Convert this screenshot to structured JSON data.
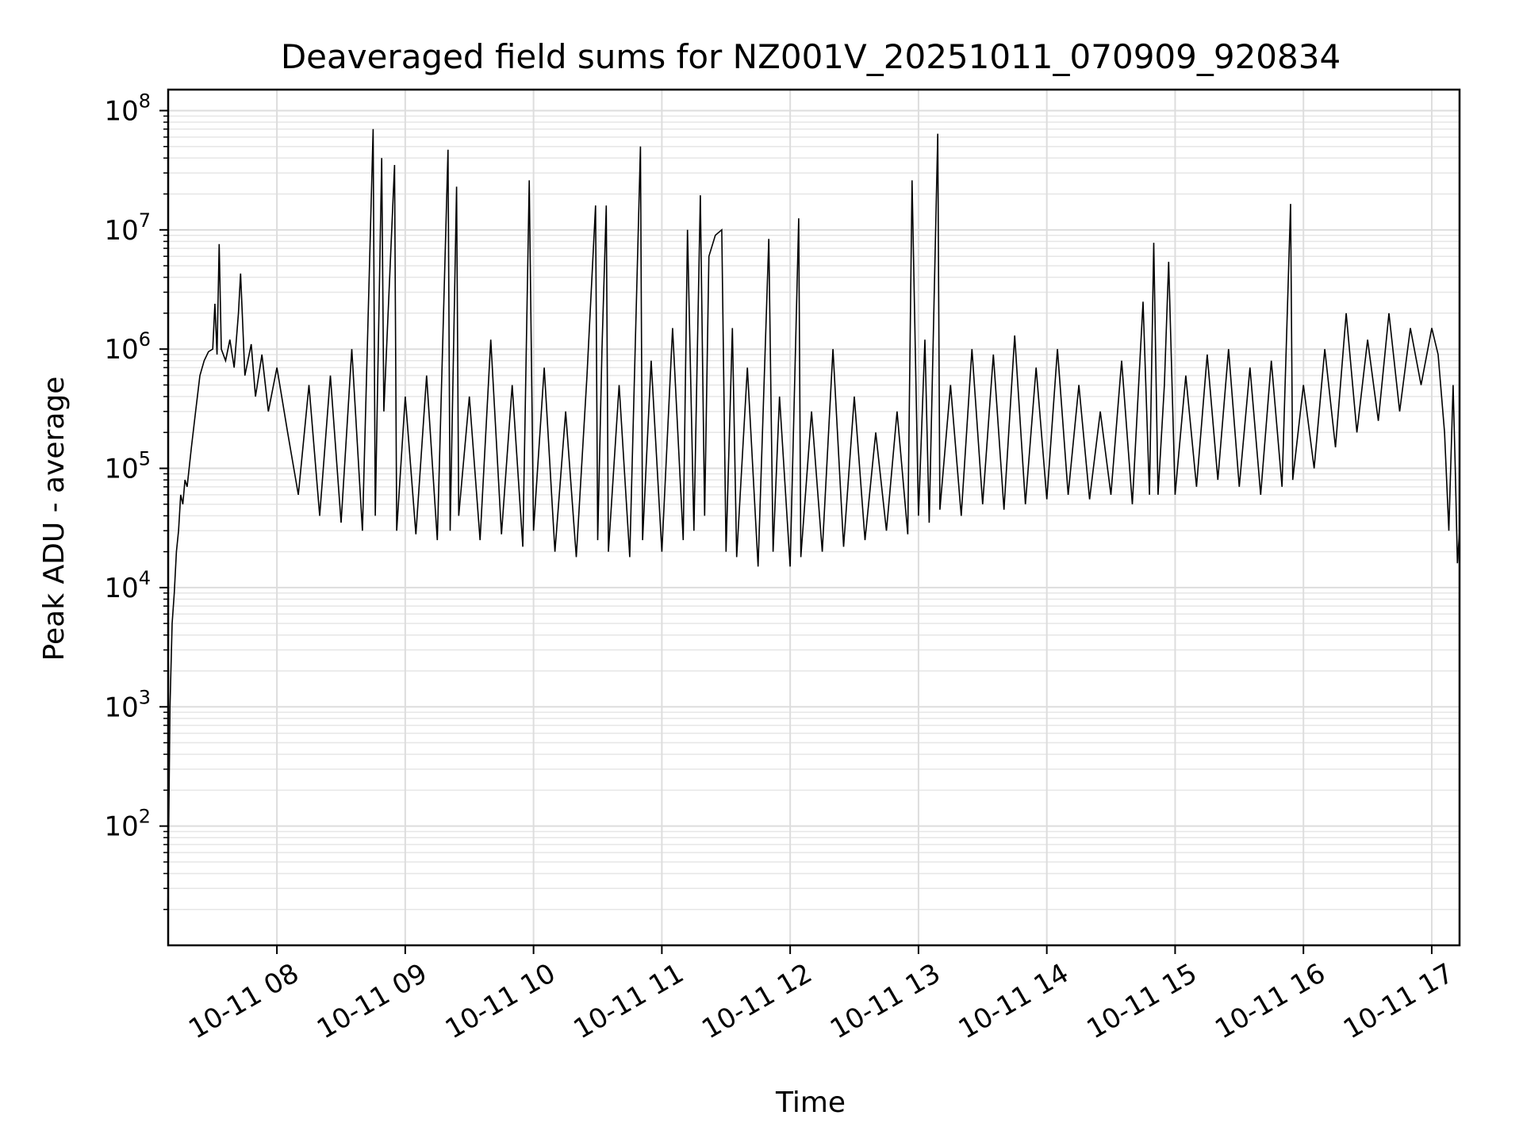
{
  "chart_data": {
    "type": "line",
    "title": "Deaveraged field sums for NZ001V_20251011_070909_920834",
    "xlabel": "Time",
    "ylabel": "Peak ADU - average",
    "yscale": "log",
    "ylim": [
      10,
      150000000
    ],
    "xlim": [
      "2025-10-11 07:09:09",
      "2025-10-11 17:13:00"
    ],
    "grid": true,
    "line_color": "#000000",
    "x_ticks": [
      {
        "t": "2025-10-11 08:00",
        "label": "10-11 08"
      },
      {
        "t": "2025-10-11 09:00",
        "label": "10-11 09"
      },
      {
        "t": "2025-10-11 10:00",
        "label": "10-11 10"
      },
      {
        "t": "2025-10-11 11:00",
        "label": "10-11 11"
      },
      {
        "t": "2025-10-11 12:00",
        "label": "10-11 12"
      },
      {
        "t": "2025-10-11 13:00",
        "label": "10-11 13"
      },
      {
        "t": "2025-10-11 14:00",
        "label": "10-11 14"
      },
      {
        "t": "2025-10-11 15:00",
        "label": "10-11 15"
      },
      {
        "t": "2025-10-11 16:00",
        "label": "10-11 16"
      },
      {
        "t": "2025-10-11 17:00",
        "label": "10-11 17"
      }
    ],
    "y_ticks": [
      {
        "value": 100,
        "base": "10",
        "exp": "2"
      },
      {
        "value": 1000,
        "base": "10",
        "exp": "3"
      },
      {
        "value": 10000,
        "base": "10",
        "exp": "4"
      },
      {
        "value": 100000,
        "base": "10",
        "exp": "5"
      },
      {
        "value": 1000000,
        "base": "10",
        "exp": "6"
      },
      {
        "value": 10000000,
        "base": "10",
        "exp": "7"
      },
      {
        "value": 100000000,
        "base": "10",
        "exp": "8"
      }
    ],
    "series": [
      {
        "points": [
          [
            "07:09",
            20
          ],
          [
            "07:10",
            1000
          ],
          [
            "07:11",
            5000
          ],
          [
            "07:12",
            9000
          ],
          [
            "07:13",
            20000
          ],
          [
            "07:14",
            30000
          ],
          [
            "07:15",
            60000
          ],
          [
            "07:16",
            50000
          ],
          [
            "07:17",
            80000
          ],
          [
            "07:18",
            70000
          ],
          [
            "07:20",
            150000
          ],
          [
            "07:22",
            300000
          ],
          [
            "07:24",
            600000
          ],
          [
            "07:26",
            800000
          ],
          [
            "07:28",
            950000
          ],
          [
            "07:30",
            1000000
          ],
          [
            "07:31",
            2400000
          ],
          [
            "07:32",
            900000
          ],
          [
            "07:33",
            7600000
          ],
          [
            "07:34",
            1000000
          ],
          [
            "07:36",
            800000
          ],
          [
            "07:38",
            1200000
          ],
          [
            "07:40",
            700000
          ],
          [
            "07:42",
            2000000
          ],
          [
            "07:43",
            4300000
          ],
          [
            "07:45",
            600000
          ],
          [
            "07:48",
            1100000
          ],
          [
            "07:50",
            400000
          ],
          [
            "07:53",
            900000
          ],
          [
            "07:56",
            300000
          ],
          [
            "08:00",
            700000
          ],
          [
            "08:05",
            200000
          ],
          [
            "08:10",
            60000
          ],
          [
            "08:15",
            500000
          ],
          [
            "08:20",
            40000
          ],
          [
            "08:25",
            600000
          ],
          [
            "08:30",
            35000
          ],
          [
            "08:35",
            1000000
          ],
          [
            "08:40",
            30000
          ],
          [
            "08:45",
            70000000
          ],
          [
            "08:46",
            40000
          ],
          [
            "08:49",
            40000000
          ],
          [
            "08:50",
            300000
          ],
          [
            "08:55",
            35000000
          ],
          [
            "08:56",
            30000
          ],
          [
            "09:00",
            400000
          ],
          [
            "09:05",
            28000
          ],
          [
            "09:10",
            600000
          ],
          [
            "09:15",
            25000
          ],
          [
            "09:20",
            47000000
          ],
          [
            "09:21",
            30000
          ],
          [
            "09:24",
            23000000
          ],
          [
            "09:25",
            40000
          ],
          [
            "09:30",
            400000
          ],
          [
            "09:35",
            25000
          ],
          [
            "09:40",
            1200000
          ],
          [
            "09:45",
            28000
          ],
          [
            "09:50",
            500000
          ],
          [
            "09:55",
            22000
          ],
          [
            "09:58",
            26000000
          ],
          [
            "10:00",
            30000
          ],
          [
            "10:05",
            700000
          ],
          [
            "10:10",
            20000
          ],
          [
            "10:15",
            300000
          ],
          [
            "10:20",
            18000
          ],
          [
            "10:25",
            600000
          ],
          [
            "10:29",
            16000000
          ],
          [
            "10:30",
            25000
          ],
          [
            "10:32",
            1000000
          ],
          [
            "10:34",
            16000000
          ],
          [
            "10:35",
            20000
          ],
          [
            "10:40",
            500000
          ],
          [
            "10:45",
            18000
          ],
          [
            "10:50",
            50000000
          ],
          [
            "10:51",
            25000
          ],
          [
            "10:55",
            800000
          ],
          [
            "11:00",
            20000
          ],
          [
            "11:05",
            1500000
          ],
          [
            "11:10",
            25000
          ],
          [
            "11:12",
            10000000
          ],
          [
            "11:15",
            30000
          ],
          [
            "11:18",
            19500000
          ],
          [
            "11:20",
            40000
          ],
          [
            "11:22",
            6000000
          ],
          [
            "11:25",
            9000000
          ],
          [
            "11:28",
            10000000
          ],
          [
            "11:30",
            20000
          ],
          [
            "11:33",
            1500000
          ],
          [
            "11:35",
            18000
          ],
          [
            "11:40",
            700000
          ],
          [
            "11:45",
            15000
          ],
          [
            "11:50",
            8400000
          ],
          [
            "11:52",
            20000
          ],
          [
            "11:55",
            400000
          ],
          [
            "12:00",
            15000
          ],
          [
            "12:04",
            12500000
          ],
          [
            "12:05",
            18000
          ],
          [
            "12:10",
            300000
          ],
          [
            "12:15",
            20000
          ],
          [
            "12:20",
            1000000
          ],
          [
            "12:25",
            22000
          ],
          [
            "12:30",
            400000
          ],
          [
            "12:35",
            25000
          ],
          [
            "12:40",
            200000
          ],
          [
            "12:45",
            30000
          ],
          [
            "12:50",
            300000
          ],
          [
            "12:55",
            28000
          ],
          [
            "12:57",
            26000000
          ],
          [
            "13:00",
            40000
          ],
          [
            "13:03",
            1200000
          ],
          [
            "13:05",
            35000
          ],
          [
            "13:09",
            64000000
          ],
          [
            "13:10",
            45000
          ],
          [
            "13:15",
            500000
          ],
          [
            "13:20",
            40000
          ],
          [
            "13:25",
            1000000
          ],
          [
            "13:30",
            50000
          ],
          [
            "13:35",
            900000
          ],
          [
            "13:40",
            45000
          ],
          [
            "13:45",
            1300000
          ],
          [
            "13:50",
            50000
          ],
          [
            "13:55",
            700000
          ],
          [
            "14:00",
            55000
          ],
          [
            "14:05",
            1000000
          ],
          [
            "14:10",
            60000
          ],
          [
            "14:15",
            500000
          ],
          [
            "14:20",
            55000
          ],
          [
            "14:25",
            300000
          ],
          [
            "14:30",
            60000
          ],
          [
            "14:35",
            800000
          ],
          [
            "14:40",
            50000
          ],
          [
            "14:45",
            2500000
          ],
          [
            "14:48",
            60000
          ],
          [
            "14:50",
            7800000
          ],
          [
            "14:52",
            60000
          ],
          [
            "14:55",
            500000
          ],
          [
            "14:57",
            5400000
          ],
          [
            "15:00",
            60000
          ],
          [
            "15:05",
            600000
          ],
          [
            "15:10",
            70000
          ],
          [
            "15:15",
            900000
          ],
          [
            "15:20",
            80000
          ],
          [
            "15:25",
            1000000
          ],
          [
            "15:30",
            70000
          ],
          [
            "15:35",
            700000
          ],
          [
            "15:40",
            60000
          ],
          [
            "15:45",
            800000
          ],
          [
            "15:50",
            70000
          ],
          [
            "15:54",
            16500000
          ],
          [
            "15:55",
            80000
          ],
          [
            "16:00",
            500000
          ],
          [
            "16:05",
            100000
          ],
          [
            "16:10",
            1000000
          ],
          [
            "16:15",
            150000
          ],
          [
            "16:20",
            2000000
          ],
          [
            "16:25",
            200000
          ],
          [
            "16:30",
            1200000
          ],
          [
            "16:35",
            250000
          ],
          [
            "16:40",
            2000000
          ],
          [
            "16:45",
            300000
          ],
          [
            "16:50",
            1500000
          ],
          [
            "16:55",
            500000
          ],
          [
            "17:00",
            1500000
          ],
          [
            "17:03",
            900000
          ],
          [
            "17:06",
            200000
          ],
          [
            "17:08",
            30000
          ],
          [
            "17:10",
            500000
          ],
          [
            "17:11",
            100000
          ],
          [
            "17:12",
            16000
          ],
          [
            "17:13",
            30000
          ]
        ]
      }
    ]
  }
}
